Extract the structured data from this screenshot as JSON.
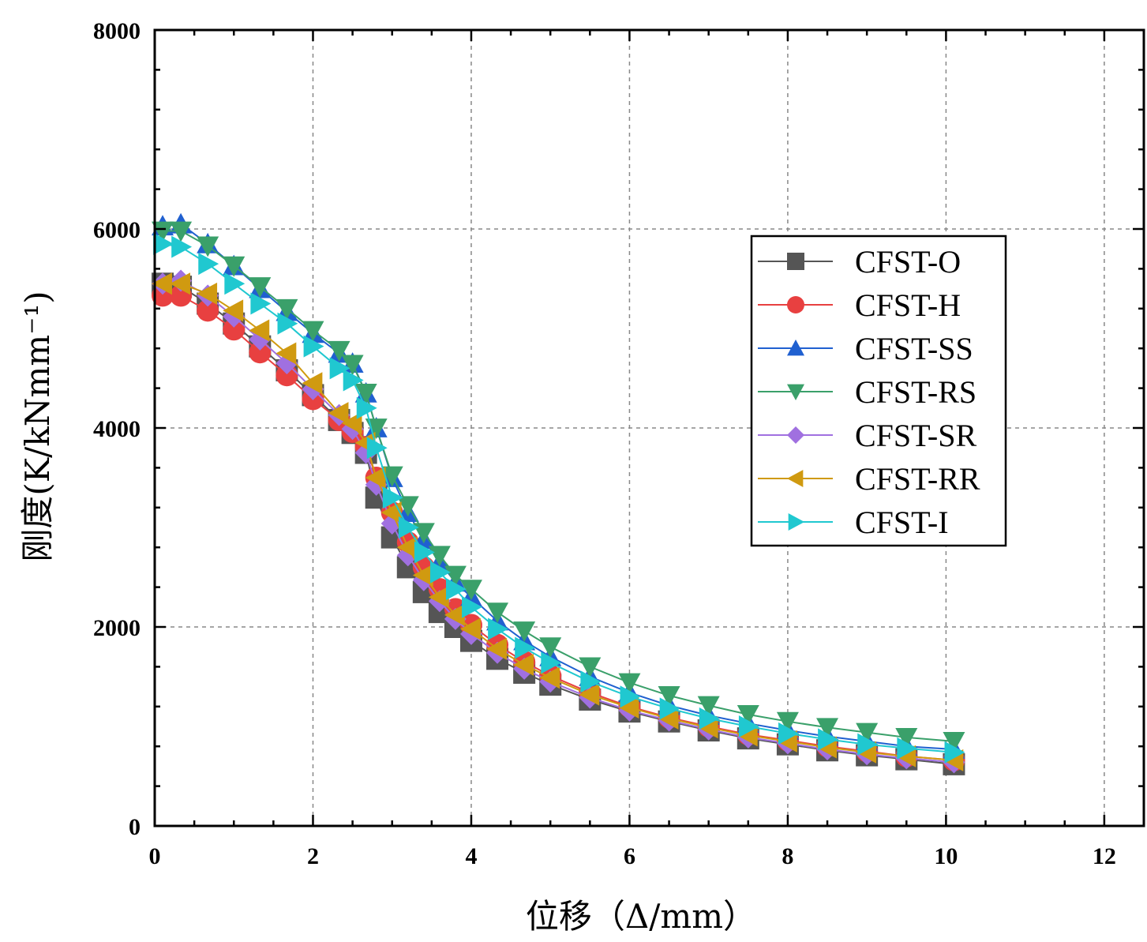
{
  "chart_data": {
    "type": "line",
    "title": "",
    "xlabel": "位移（Δ/mm）",
    "ylabel": "刚度(K/kNmm⁻¹)",
    "xlim": [
      0,
      12.5
    ],
    "ylim": [
      0,
      8000
    ],
    "xticks": [
      0,
      2,
      4,
      6,
      8,
      10,
      12
    ],
    "yticks": [
      0,
      2000,
      4000,
      6000,
      8000
    ],
    "xtick_labels": [
      "0",
      "2",
      "4",
      "6",
      "8",
      "10",
      "12"
    ],
    "ytick_labels": [
      "0",
      "2000",
      "4000",
      "6000",
      "8000"
    ],
    "grid": true,
    "legend_position": "right",
    "x": [
      0.1,
      0.33,
      0.67,
      1.0,
      1.33,
      1.67,
      2.0,
      2.33,
      2.5,
      2.67,
      2.8,
      3.0,
      3.2,
      3.4,
      3.6,
      3.8,
      4.0,
      4.33,
      4.67,
      5.0,
      5.5,
      6.0,
      6.5,
      7.0,
      7.5,
      8.0,
      8.5,
      9.0,
      9.5,
      10.1
    ],
    "series": [
      {
        "name": "CFST-O",
        "color": "#555555",
        "marker": "square",
        "values": [
          5450,
          5420,
          5250,
          5050,
          4820,
          4580,
          4330,
          4080,
          3950,
          3750,
          3300,
          2900,
          2600,
          2350,
          2150,
          2000,
          1860,
          1680,
          1540,
          1420,
          1270,
          1150,
          1050,
          960,
          880,
          820,
          760,
          710,
          670,
          620
        ]
      },
      {
        "name": "CFST-H",
        "color": "#e84040",
        "marker": "circle",
        "values": [
          5330,
          5330,
          5180,
          4990,
          4760,
          4530,
          4290,
          4080,
          3960,
          3810,
          3500,
          3150,
          2850,
          2600,
          2380,
          2180,
          2020,
          1820,
          1650,
          1510,
          1340,
          1200,
          1090,
          1000,
          920,
          860,
          800,
          750,
          700,
          660
        ]
      },
      {
        "name": "CFST-SS",
        "color": "#2060d0",
        "marker": "triangle-up",
        "values": [
          6030,
          6050,
          5850,
          5630,
          5400,
          5170,
          4950,
          4750,
          4650,
          4350,
          4000,
          3500,
          3150,
          2880,
          2650,
          2450,
          2300,
          2060,
          1860,
          1700,
          1500,
          1340,
          1210,
          1110,
          1030,
          960,
          900,
          850,
          800,
          770
        ]
      },
      {
        "name": "CFST-RS",
        "color": "#3aa06a",
        "marker": "triangle-down",
        "values": [
          5980,
          5980,
          5830,
          5630,
          5420,
          5200,
          4980,
          4780,
          4640,
          4350,
          4000,
          3520,
          3220,
          2950,
          2720,
          2520,
          2380,
          2150,
          1960,
          1800,
          1600,
          1440,
          1310,
          1210,
          1120,
          1050,
          990,
          940,
          890,
          850
        ]
      },
      {
        "name": "CFST-SR",
        "color": "#a070e0",
        "marker": "diamond",
        "values": [
          5450,
          5480,
          5330,
          5120,
          4890,
          4650,
          4390,
          4130,
          3990,
          3750,
          3430,
          3040,
          2720,
          2470,
          2260,
          2080,
          1930,
          1740,
          1580,
          1450,
          1290,
          1160,
          1060,
          970,
          890,
          830,
          770,
          720,
          680,
          640
        ]
      },
      {
        "name": "CFST-RR",
        "color": "#d09a10",
        "marker": "triangle-left",
        "values": [
          5450,
          5450,
          5350,
          5180,
          4980,
          4750,
          4450,
          4150,
          4050,
          3850,
          3500,
          3150,
          2800,
          2520,
          2300,
          2120,
          1980,
          1780,
          1620,
          1490,
          1320,
          1190,
          1080,
          990,
          910,
          850,
          790,
          740,
          700,
          660
        ]
      },
      {
        "name": "CFST-I",
        "color": "#20c8d0",
        "marker": "triangle-right",
        "values": [
          5850,
          5820,
          5650,
          5450,
          5250,
          5050,
          4820,
          4600,
          4480,
          4200,
          3800,
          3300,
          3000,
          2750,
          2550,
          2380,
          2200,
          1980,
          1790,
          1640,
          1450,
          1300,
          1180,
          1080,
          1000,
          930,
          870,
          820,
          780,
          740
        ]
      }
    ]
  }
}
